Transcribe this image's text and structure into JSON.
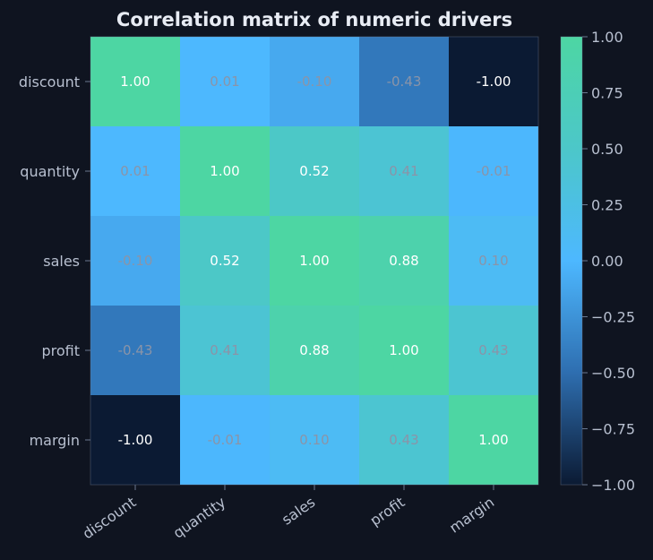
{
  "chart_data": {
    "type": "heatmap",
    "title": "Correlation matrix of numeric drivers",
    "xlabel": "",
    "ylabel": "",
    "row_labels": [
      "discount",
      "quantity",
      "sales",
      "profit",
      "margin"
    ],
    "col_labels": [
      "discount",
      "quantity",
      "sales",
      "profit",
      "margin"
    ],
    "values": [
      [
        1.0,
        0.01,
        -0.1,
        -0.43,
        -1.0
      ],
      [
        0.01,
        1.0,
        0.52,
        0.41,
        -0.01
      ],
      [
        -0.1,
        0.52,
        1.0,
        0.88,
        0.1
      ],
      [
        -0.43,
        0.41,
        0.88,
        1.0,
        0.43
      ],
      [
        -1.0,
        -0.01,
        0.1,
        0.43,
        1.0
      ]
    ],
    "value_labels": [
      [
        "1.00",
        "0.01",
        "-0.10",
        "-0.43",
        "-1.00"
      ],
      [
        "0.01",
        "1.00",
        "0.52",
        "0.41",
        "-0.01"
      ],
      [
        "-0.10",
        "0.52",
        "1.00",
        "0.88",
        "0.10"
      ],
      [
        "-0.43",
        "0.41",
        "0.88",
        "1.00",
        "0.43"
      ],
      [
        "-1.00",
        "-0.01",
        "0.10",
        "0.43",
        "1.00"
      ]
    ],
    "color_range": [
      -1,
      1
    ],
    "colorbar_ticks": [
      1.0,
      0.75,
      0.5,
      0.25,
      0.0,
      -0.25,
      -0.5,
      -0.75,
      -1.0
    ],
    "colorbar_tick_labels": [
      "1.00",
      "0.75",
      "0.50",
      "0.25",
      "0.00",
      "−0.25",
      "−0.50",
      "−0.75",
      "−1.00"
    ],
    "colormap": [
      {
        "v": -1.0,
        "color": "#0b1a33"
      },
      {
        "v": -0.5,
        "color": "#2e6eb0"
      },
      {
        "v": 0.0,
        "color": "#4db8ff"
      },
      {
        "v": 0.5,
        "color": "#4cc7c9"
      },
      {
        "v": 1.0,
        "color": "#4dd6a3"
      }
    ],
    "colors": {
      "background": "#0f1420",
      "title": "#e8ecf4",
      "tick_text": "#b8c0d0",
      "axis": "#6b7890",
      "label_strong": "#ffffff",
      "label_weak": "#8a94a8"
    },
    "grid": false,
    "legend": "right colorbar"
  }
}
